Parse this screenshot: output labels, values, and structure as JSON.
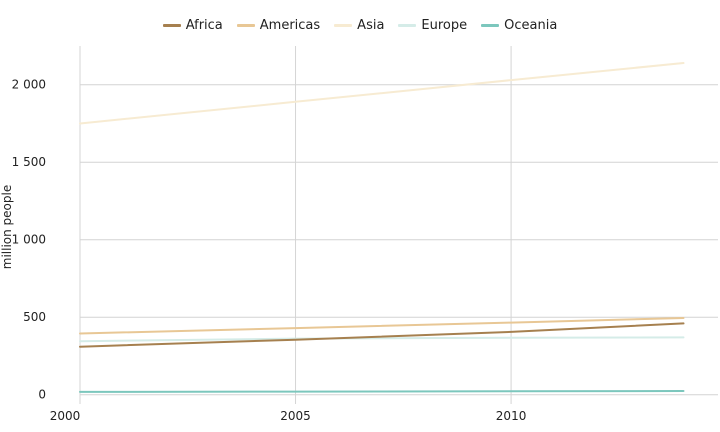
{
  "chart_data": {
    "type": "line",
    "title": "",
    "xlabel": "",
    "ylabel": "million people",
    "x": [
      2000,
      2005,
      2010,
      2014
    ],
    "x_ticks": [
      2000,
      2005,
      2010
    ],
    "x_tick_labels": [
      "2000",
      "2005",
      "2010"
    ],
    "y_ticks": [
      0,
      500,
      1000,
      1500,
      2000
    ],
    "y_tick_labels": [
      "0",
      "500",
      "1 000",
      "1 500",
      "2 000"
    ],
    "xlim": [
      2000,
      2014.8
    ],
    "ylim": [
      -60,
      2250
    ],
    "grid": true,
    "legend_position": "top-center",
    "series": [
      {
        "name": "Africa",
        "color": "#a6804f",
        "values": [
          310,
          355,
          405,
          460
        ]
      },
      {
        "name": "Americas",
        "color": "#e8c795",
        "values": [
          395,
          430,
          465,
          495
        ]
      },
      {
        "name": "Asia",
        "color": "#f7ebd2",
        "values": [
          1750,
          1890,
          2030,
          2140
        ]
      },
      {
        "name": "Europe",
        "color": "#d5ece8",
        "values": [
          345,
          362,
          368,
          370
        ]
      },
      {
        "name": "Oceania",
        "color": "#7cc7bd",
        "values": [
          18,
          20,
          22,
          24
        ]
      }
    ]
  }
}
